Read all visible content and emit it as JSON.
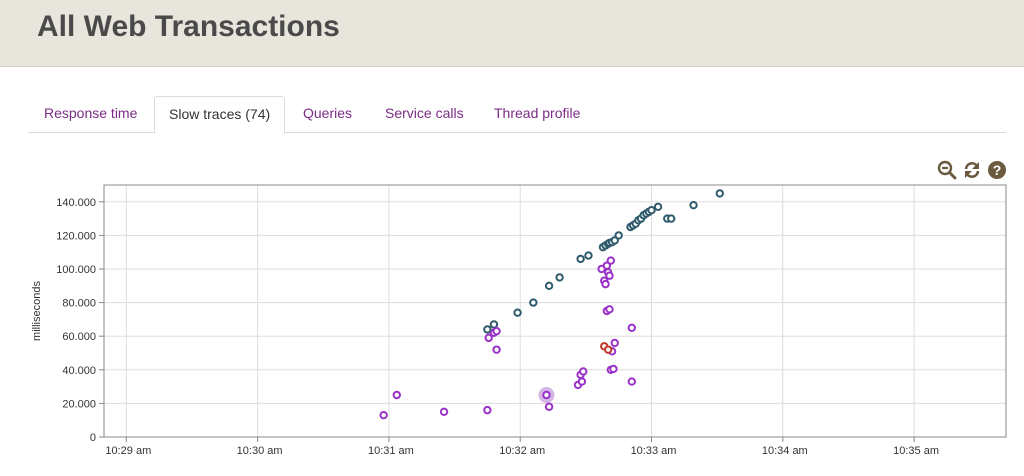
{
  "page": {
    "title": "All Web Transactions"
  },
  "tabs": [
    {
      "label": "Response time",
      "active": false
    },
    {
      "label": "Slow traces (74)",
      "active": true
    },
    {
      "label": "Queries",
      "active": false
    },
    {
      "label": "Service calls",
      "active": false
    },
    {
      "label": "Thread profile",
      "active": false
    }
  ],
  "toolbar": {
    "icons": [
      "zoom-out-icon",
      "refresh-icon",
      "help-icon"
    ]
  },
  "colors": {
    "accent": "#7b2c85",
    "series_dark": "#2e5a6b",
    "series_purple": "#9a32c9",
    "series_red": "#c0392b",
    "header_bg": "#e8e5dc"
  },
  "chart_data": {
    "type": "scatter",
    "ylabel": "milliseconds",
    "xlabel": "",
    "x_ticks": [
      "10:29 am",
      "10:30 am",
      "10:31 am",
      "10:32 am",
      "10:33 am",
      "10:34 am",
      "10:35 am"
    ],
    "y_ticks": [
      "0",
      "20.000",
      "40.000",
      "60.000",
      "80.000",
      "100.000",
      "120.000",
      "140.000"
    ],
    "xlim_minutes": [
      -0.17,
      6.7
    ],
    "ylim": [
      0,
      150000
    ],
    "grid": true,
    "x_unit": "minutes after 10:29 am",
    "series": [
      {
        "color": "#2e5a6b",
        "points": [
          [
            2.75,
            64000
          ],
          [
            2.8,
            67000
          ],
          [
            2.98,
            74000
          ],
          [
            3.1,
            80000
          ],
          [
            3.22,
            90000
          ],
          [
            3.3,
            95000
          ],
          [
            3.46,
            106000
          ],
          [
            3.52,
            108000
          ],
          [
            3.63,
            113000
          ],
          [
            3.65,
            114000
          ],
          [
            3.67,
            115000
          ],
          [
            3.68,
            115500
          ],
          [
            3.7,
            116000
          ],
          [
            3.72,
            117000
          ],
          [
            3.75,
            120000
          ],
          [
            3.84,
            125000
          ],
          [
            3.86,
            126000
          ],
          [
            3.88,
            127000
          ],
          [
            3.9,
            129000
          ],
          [
            3.92,
            130000
          ],
          [
            3.94,
            132000
          ],
          [
            3.96,
            133000
          ],
          [
            3.98,
            134000
          ],
          [
            4.0,
            135000
          ],
          [
            4.05,
            137000
          ],
          [
            4.12,
            130000
          ],
          [
            4.15,
            130000
          ],
          [
            4.32,
            138000
          ],
          [
            4.52,
            145000
          ]
        ]
      },
      {
        "color": "#9a32c9",
        "points": [
          [
            1.96,
            13000
          ],
          [
            2.06,
            25000
          ],
          [
            2.42,
            15000
          ],
          [
            2.75,
            16000
          ],
          [
            2.76,
            59000
          ],
          [
            2.8,
            62000
          ],
          [
            2.82,
            63000
          ],
          [
            2.82,
            52000
          ],
          [
            3.2,
            25000
          ],
          [
            3.22,
            18000
          ],
          [
            3.44,
            31000
          ],
          [
            3.46,
            37000
          ],
          [
            3.47,
            33000
          ],
          [
            3.48,
            39000
          ],
          [
            3.62,
            100000
          ],
          [
            3.64,
            93000
          ],
          [
            3.65,
            91000
          ],
          [
            3.66,
            102000
          ],
          [
            3.67,
            98000
          ],
          [
            3.68,
            96000
          ],
          [
            3.69,
            105000
          ],
          [
            3.66,
            75000
          ],
          [
            3.68,
            76000
          ],
          [
            3.7,
            51000
          ],
          [
            3.72,
            56000
          ],
          [
            3.69,
            40000
          ],
          [
            3.71,
            40500
          ],
          [
            3.85,
            65000
          ],
          [
            3.85,
            33000
          ]
        ]
      },
      {
        "color": "#c0392b",
        "points": [
          [
            3.64,
            54000
          ],
          [
            3.67,
            52000
          ]
        ]
      }
    ],
    "highlight": [
      3.2,
      25000
    ]
  }
}
